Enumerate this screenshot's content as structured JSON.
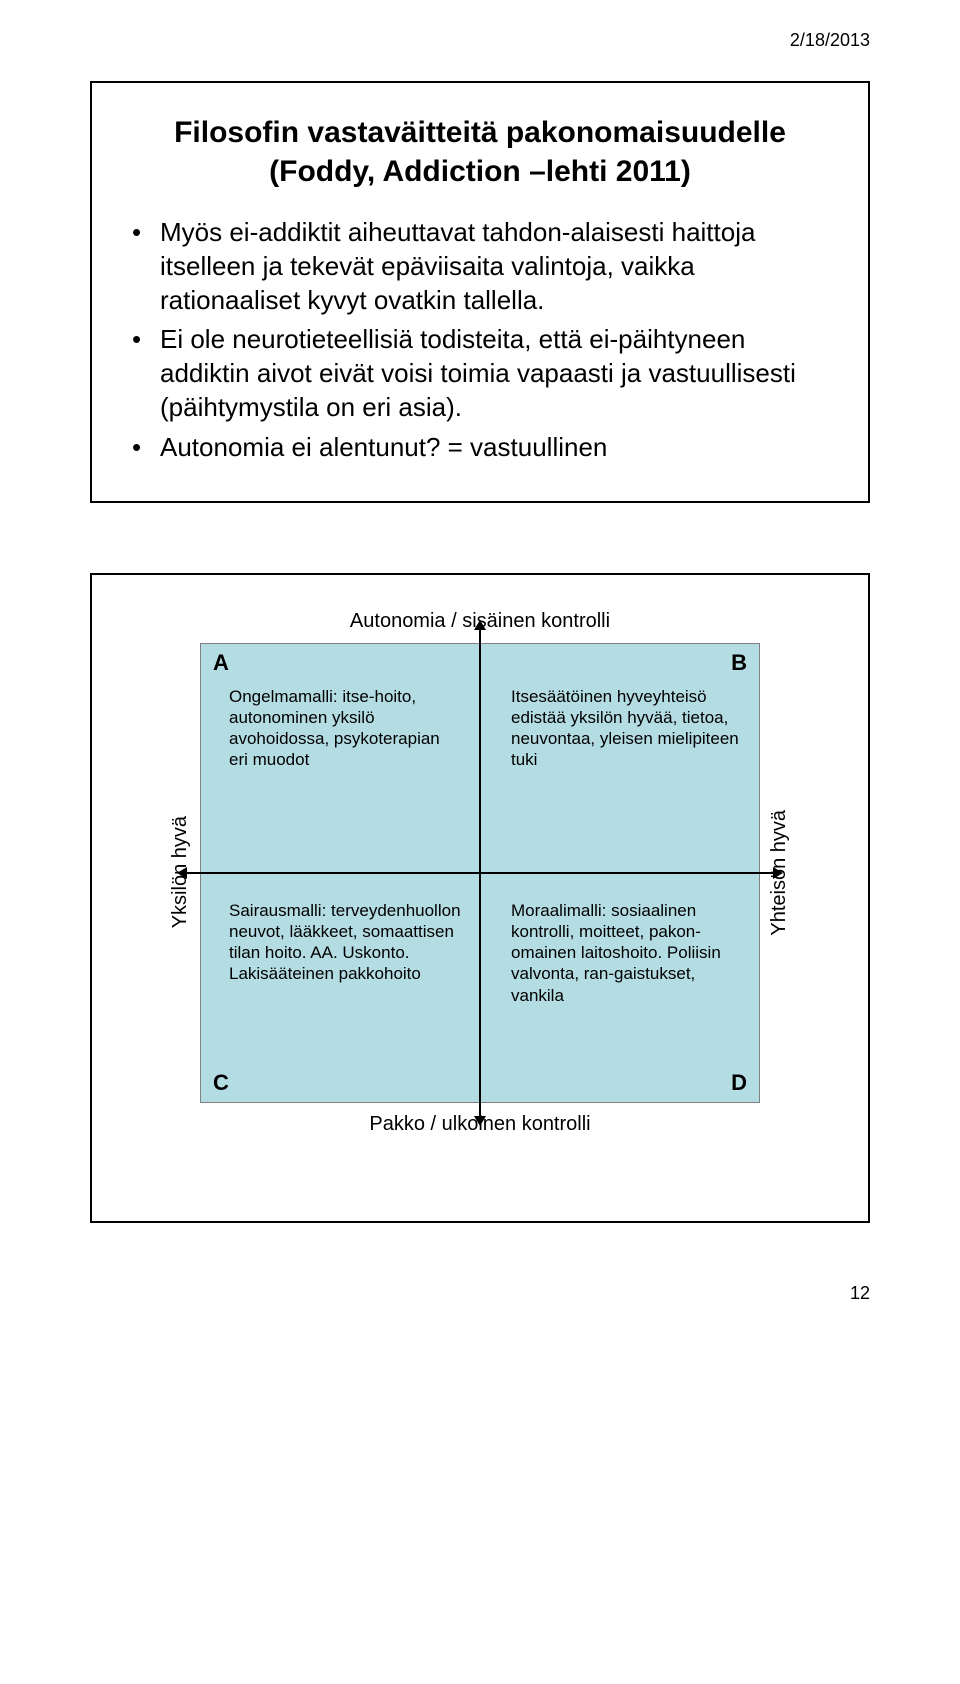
{
  "header": {
    "date": "2/18/2013"
  },
  "slide1": {
    "title_line1": "Filosofin vastaväitteitä pakonomaisuudelle",
    "title_line2": "(Foddy, Addiction –lehti 2011)",
    "bullets": [
      "Myös ei-addiktit aiheuttavat tahdon-alaisesti haittoja itselleen ja tekevät epäviisaita valintoja, vaikka rationaaliset kyvyt ovatkin tallella.",
      "Ei ole neurotieteellisiä todisteita, että ei-päihtyneen addiktin aivot eivät voisi toimia vapaasti ja vastuullisesti (päihtymystila on eri asia).",
      "Autonomia ei alentunut? = vastuullinen"
    ]
  },
  "slide2": {
    "top_axis": "Autonomia / sisäinen kontrolli",
    "bottom_axis": "Pakko / ulkoinen kontrolli",
    "left_axis": "Yksilön hyvä",
    "right_axis": "Yhteisön hyvä",
    "corners": {
      "a": "A",
      "b": "B",
      "c": "C",
      "d": "D"
    },
    "cells": {
      "a": "Ongelmamalli: itse-hoito, autonominen yksilö avohoidossa, psykoterapian eri muodot",
      "b": "Itsesäätöinen hyveyhteisö edistää yksilön hyvää, tietoa, neuvontaa, yleisen mielipiteen tuki",
      "c": "Sairausmalli: terveydenhuollon neuvot, lääkkeet, somaattisen tilan hoito. AA. Uskonto. Lakisääteinen pakkohoito",
      "d": "Moraalimalli: sosiaalinen kontrolli, moitteet, pakon-omainen laitoshoito. Poliisin valvonta, ran-gaistukset, vankila"
    },
    "colors": {
      "quad_bg": "#b4dce3",
      "quad_border": "#808080",
      "axis": "#000000"
    }
  },
  "footer": {
    "pagenum": "12"
  }
}
